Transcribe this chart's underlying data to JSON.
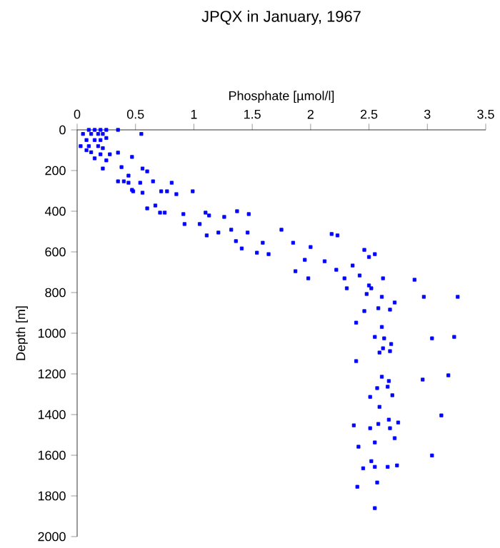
{
  "chart_data": {
    "type": "scatter",
    "title": "JPQX in January, 1967",
    "xlabel": "Phosphate [µmol/l]",
    "ylabel": "Depth [m]",
    "xlim": [
      0,
      3.5
    ],
    "xticks": [
      0,
      0.5,
      1,
      1.5,
      2,
      2.5,
      3,
      3.5
    ],
    "ylim": [
      2000,
      0
    ],
    "yticks": [
      0,
      200,
      400,
      600,
      800,
      1000,
      1200,
      1400,
      1600,
      1800,
      2000
    ],
    "grid": false,
    "marker": "square",
    "series": [
      {
        "color": "#0000ff",
        "x": [
          0.1,
          0.15,
          0.2,
          0.25,
          0.05,
          0.12,
          0.18,
          0.22,
          0.55,
          0.35,
          0.08,
          0.15,
          0.2,
          0.25,
          0.03,
          0.1,
          0.18,
          0.22,
          0.12,
          0.2,
          0.28,
          0.15,
          0.25,
          0.08,
          0.35,
          0.47,
          0.56,
          0.6,
          0.22,
          0.38,
          0.44,
          0.35,
          0.4,
          0.44,
          0.54,
          0.65,
          0.81,
          0.47,
          0.48,
          0.56,
          0.72,
          0.77,
          0.85,
          0.99,
          0.6,
          0.67,
          0.71,
          0.75,
          0.91,
          0.92,
          1.05,
          1.1,
          1.13,
          1.26,
          1.37,
          1.47,
          1.11,
          1.21,
          1.32,
          1.46,
          1.36,
          1.41,
          1.54,
          1.59,
          1.64,
          1.75,
          1.85,
          2.0,
          2.18,
          2.23,
          1.95,
          1.87,
          1.98,
          2.12,
          2.22,
          2.36,
          2.42,
          2.29,
          2.46,
          2.5,
          2.55,
          2.5,
          2.62,
          2.89,
          2.31,
          2.48,
          2.52,
          2.61,
          2.72,
          2.46,
          2.58,
          2.68,
          2.97,
          3.26,
          2.39,
          2.61,
          2.55,
          2.63,
          2.69,
          2.62,
          2.68,
          2.59,
          3.04,
          3.23,
          2.39,
          2.61,
          2.67,
          2.66,
          2.57,
          2.7,
          2.51,
          2.96,
          3.18,
          2.59,
          2.67,
          2.75,
          2.58,
          2.37,
          2.51,
          2.68,
          3.12,
          2.72,
          2.55,
          2.41,
          3.04,
          2.52,
          2.45,
          2.55,
          2.66,
          2.74,
          2.4,
          2.57,
          2.55
        ],
        "values": [
          0,
          0,
          0,
          0,
          20,
          20,
          20,
          20,
          20,
          0,
          50,
          50,
          50,
          40,
          80,
          80,
          80,
          90,
          110,
          120,
          120,
          140,
          150,
          100,
          112,
          133,
          190,
          204,
          190,
          183,
          225,
          253,
          253,
          260,
          260,
          253,
          260,
          295,
          302,
          309,
          302,
          302,
          316,
          302,
          386,
          372,
          407,
          407,
          414,
          463,
          463,
          407,
          421,
          428,
          400,
          414,
          519,
          505,
          491,
          505,
          547,
          583,
          604,
          555,
          611,
          491,
          555,
          576,
          512,
          519,
          639,
          695,
          730,
          646,
          688,
          667,
          716,
          730,
          590,
          625,
          611,
          765,
          730,
          737,
          779,
          807,
          779,
          821,
          849,
          891,
          877,
          884,
          821,
          821,
          948,
          969,
          1018,
          1025,
          1053,
          1074,
          1088,
          1095,
          1025,
          1018,
          1137,
          1214,
          1235,
          1263,
          1270,
          1305,
          1313,
          1228,
          1207,
          1362,
          1425,
          1439,
          1446,
          1453,
          1467,
          1467,
          1404,
          1516,
          1537,
          1558,
          1601,
          1629,
          1664,
          1657,
          1657,
          1650,
          1755,
          1734,
          1860
        ]
      }
    ]
  }
}
